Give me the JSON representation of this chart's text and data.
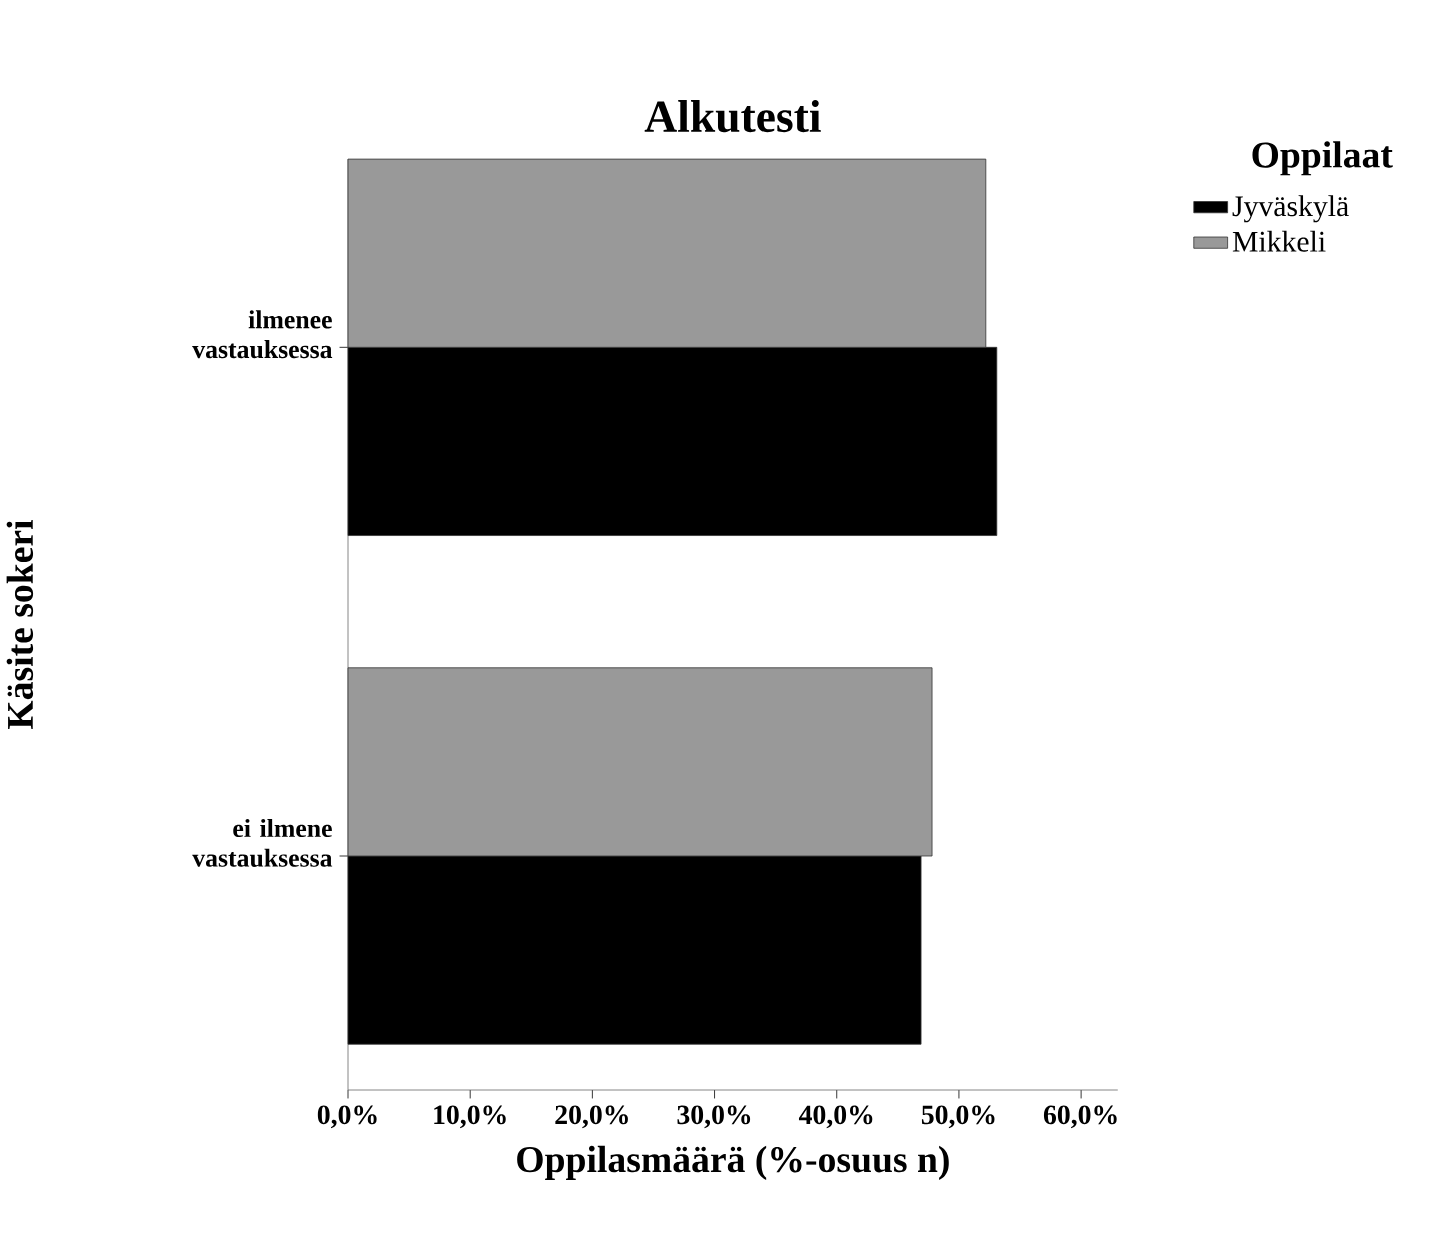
{
  "chart_data": {
    "type": "bar",
    "orientation": "horizontal",
    "title": "Alkutesti",
    "xlabel": "Oppilasmäärä (%-osuus n)",
    "ylabel": "Käsite sokeri",
    "legend_title": "Oppilaat",
    "categories": [
      "ilmenee vastauksessa",
      "ei ilmene vastauksessa"
    ],
    "series": [
      {
        "name": "Jyväskylä",
        "color": "#000000",
        "values": [
          53.1,
          46.9
        ]
      },
      {
        "name": "Mikkeli",
        "color": "#999999",
        "values": [
          52.2,
          47.8
        ]
      }
    ],
    "xlim": [
      0,
      63
    ],
    "xticks": [
      {
        "value": 0,
        "label": "0,0%"
      },
      {
        "value": 10,
        "label": "10,0%"
      },
      {
        "value": 20,
        "label": "20,0%"
      },
      {
        "value": 30,
        "label": "30,0%"
      },
      {
        "value": 40,
        "label": "40,0%"
      },
      {
        "value": 50,
        "label": "50,0%"
      },
      {
        "value": 60,
        "label": "60,0%"
      }
    ],
    "grid": false,
    "legend": "top right"
  }
}
